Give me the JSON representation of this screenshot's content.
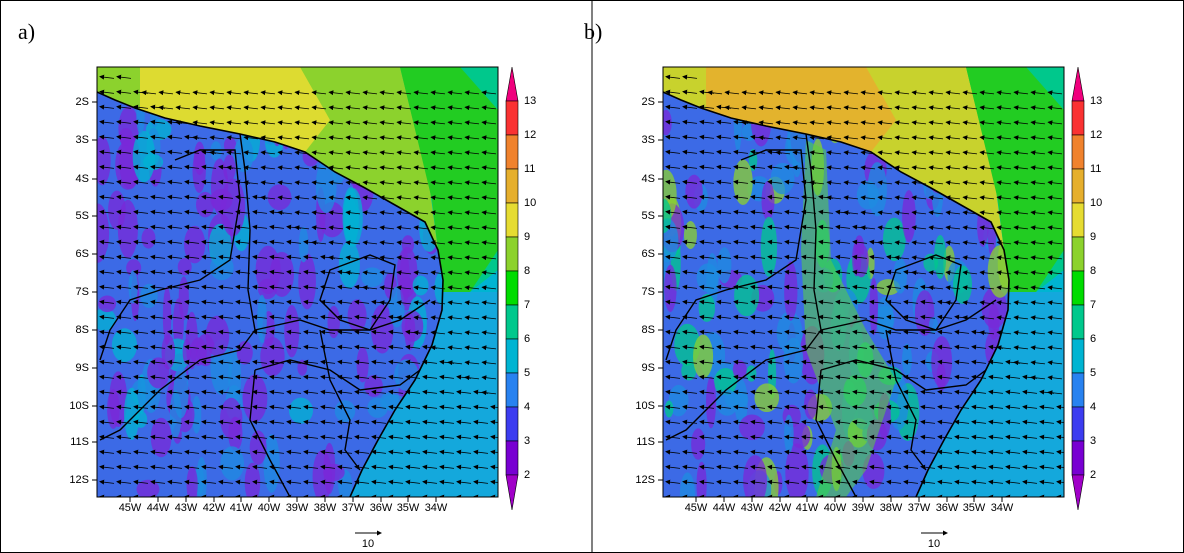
{
  "panels": [
    {
      "label": "a)",
      "lat_labels": [
        "2S",
        "3S",
        "4S",
        "5S",
        "6S",
        "7S",
        "8S",
        "9S",
        "10S",
        "11S",
        "12S"
      ],
      "lon_labels": [
        "45W",
        "44W",
        "43W",
        "42W",
        "41W",
        "40W",
        "39W",
        "38W",
        "37W",
        "36W",
        "35W",
        "34W"
      ],
      "colorbar_labels": [
        "13",
        "12",
        "11",
        "10",
        "9",
        "8",
        "7",
        "6",
        "5",
        "4",
        "3",
        "2"
      ],
      "reference_vector": "10"
    },
    {
      "label": "b)",
      "lat_labels": [
        "2S",
        "3S",
        "4S",
        "5S",
        "6S",
        "7S",
        "8S",
        "9S",
        "10S",
        "11S",
        "12S"
      ],
      "lon_labels": [
        "45W",
        "44W",
        "43W",
        "42W",
        "41W",
        "40W",
        "39W",
        "38W",
        "37W",
        "36W",
        "35W",
        "34W"
      ],
      "colorbar_labels": [
        "13",
        "12",
        "11",
        "10",
        "9",
        "8",
        "7",
        "6",
        "5",
        "4",
        "3",
        "2"
      ],
      "reference_vector": "10"
    }
  ]
}
